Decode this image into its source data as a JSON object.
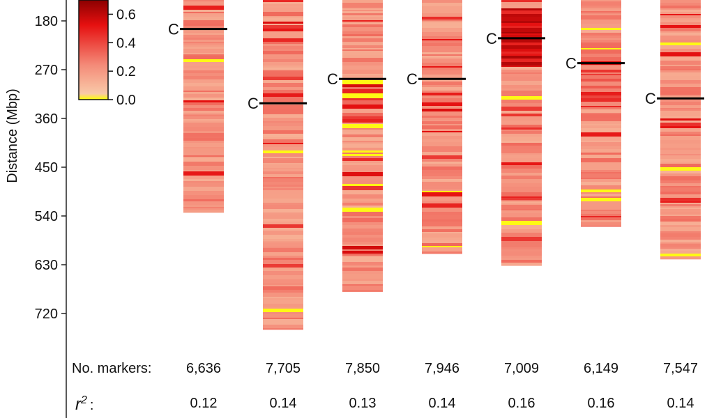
{
  "chart_data": {
    "type": "heatmap",
    "ylabel": "Distance (Mbp)",
    "y_ticks": [
      180,
      270,
      360,
      450,
      540,
      630,
      720
    ],
    "y_reversed": true,
    "colorbar": {
      "ticks": [
        "0.6",
        "0.4",
        "0.2",
        "0.0"
      ],
      "min": 0.0,
      "max": 0.7,
      "colors": [
        "#ffff00",
        "#f9c4b0",
        "#f48a78",
        "#e61010",
        "#8b0000"
      ]
    },
    "centromere_label": "C",
    "chromosomes": [
      {
        "length_mbp": 534,
        "centromere_mbp": 195,
        "markers": "6,636",
        "r2": "0.12"
      },
      {
        "length_mbp": 750,
        "centromere_mbp": 332,
        "markers": "7,705",
        "r2": "0.14"
      },
      {
        "length_mbp": 680,
        "centromere_mbp": 287,
        "markers": "7,850",
        "r2": "0.13"
      },
      {
        "length_mbp": 610,
        "centromere_mbp": 287,
        "markers": "7,946",
        "r2": "0.14"
      },
      {
        "length_mbp": 632,
        "centromere_mbp": 212,
        "markers": "7,009",
        "r2": "0.16"
      },
      {
        "length_mbp": 560,
        "centromere_mbp": 258,
        "markers": "6,149",
        "r2": "0.16"
      },
      {
        "length_mbp": 620,
        "centromere_mbp": 323,
        "markers": "7,547",
        "r2": "0.14"
      }
    ]
  },
  "footer": {
    "markers_label": "No. markers:",
    "r2_symbol": "r",
    "r2_exponent": "2",
    "r2_colon": ":"
  }
}
